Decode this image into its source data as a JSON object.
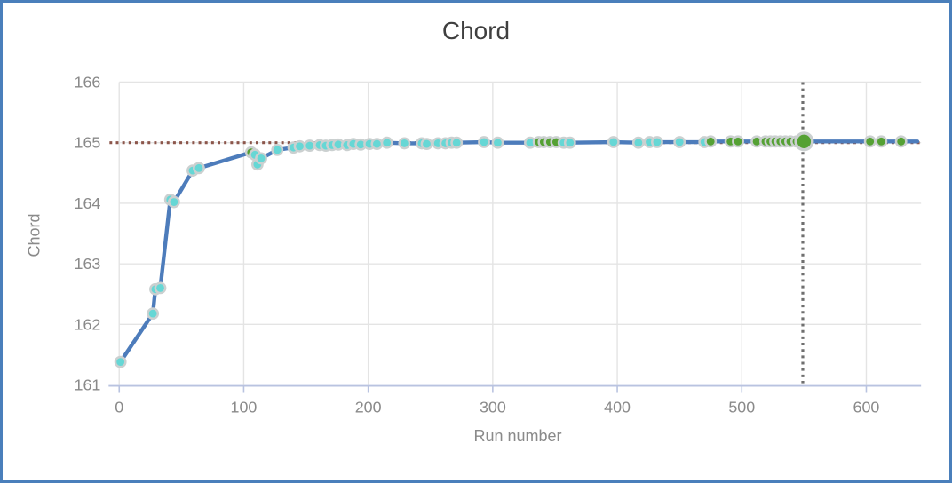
{
  "page": {
    "background": "#ffffff",
    "frame_color": "#4a7fbb"
  },
  "chart_data": {
    "type": "line",
    "title": "Chord",
    "xlabel": "Run number",
    "ylabel": "Chord",
    "x_ticks": [
      0,
      100,
      200,
      300,
      400,
      500,
      600
    ],
    "y_ticks": [
      161,
      162,
      163,
      164,
      165,
      166
    ],
    "xlim": [
      -8.5,
      644
    ],
    "ylim": [
      161,
      166
    ],
    "grid": true,
    "legend": "none",
    "style": {
      "line_color": "#4d7cbb",
      "marker_stroke": "#cbd0d0",
      "cyan_marker": "#66d7d5",
      "green_marker": "#55a134",
      "gridline_color": "#e4e4e4",
      "baseline_color": "#b9c3e0",
      "tick_label_color": "#8a8a8a",
      "title_color": "#3f3f3f",
      "target_line_color": "#8c564b",
      "current_run_line_color": "#6f6f6f"
    },
    "reference_lines": [
      {
        "name": "target-value",
        "orientation": "horizontal",
        "value": 165,
        "style": "dotted",
        "color": "#8c564b"
      },
      {
        "name": "current-run",
        "orientation": "vertical",
        "value": 549,
        "style": "dotted",
        "color": "#6f6f6f"
      }
    ],
    "highlight_point": {
      "x": 550,
      "y": 165.02,
      "color": "green",
      "size": "large"
    },
    "line_end": {
      "x": 641,
      "y": 165.02
    },
    "points": [
      [
        1,
        161.38,
        "c"
      ],
      [
        27,
        162.18,
        "c"
      ],
      [
        29,
        162.58,
        "c"
      ],
      [
        33,
        162.6,
        "c"
      ],
      [
        41,
        164.06,
        "c"
      ],
      [
        44,
        164.02,
        "c"
      ],
      [
        59,
        164.54,
        "c"
      ],
      [
        64,
        164.58,
        "c"
      ],
      [
        106,
        164.84,
        "g"
      ],
      [
        109,
        164.8,
        "c"
      ],
      [
        111,
        164.64,
        "c"
      ],
      [
        114,
        164.74,
        "c"
      ],
      [
        127,
        164.88,
        "c"
      ],
      [
        140,
        164.92,
        "c"
      ],
      [
        145,
        164.94,
        "c"
      ],
      [
        153,
        164.95,
        "c"
      ],
      [
        161,
        164.96,
        "c"
      ],
      [
        166,
        164.95,
        "c"
      ],
      [
        171,
        164.96,
        "c"
      ],
      [
        176,
        164.97,
        "c"
      ],
      [
        183,
        164.96,
        "c"
      ],
      [
        188,
        164.98,
        "c"
      ],
      [
        194,
        164.97,
        "c"
      ],
      [
        201,
        164.98,
        "c"
      ],
      [
        207,
        164.98,
        "c"
      ],
      [
        215,
        165.0,
        "c"
      ],
      [
        229,
        164.99,
        "c"
      ],
      [
        243,
        164.99,
        "c"
      ],
      [
        247,
        164.98,
        "c"
      ],
      [
        256,
        164.99,
        "c"
      ],
      [
        262,
        164.99,
        "c"
      ],
      [
        267,
        165.0,
        "c"
      ],
      [
        271,
        165.0,
        "c"
      ],
      [
        293,
        165.01,
        "c"
      ],
      [
        304,
        165.0,
        "c"
      ],
      [
        330,
        165.0,
        "c"
      ],
      [
        337,
        165.01,
        "g"
      ],
      [
        341,
        165.01,
        "g"
      ],
      [
        346,
        165.01,
        "g"
      ],
      [
        351,
        165.01,
        "g"
      ],
      [
        357,
        165.0,
        "c"
      ],
      [
        362,
        165.0,
        "c"
      ],
      [
        397,
        165.01,
        "c"
      ],
      [
        417,
        165.0,
        "c"
      ],
      [
        426,
        165.01,
        "c"
      ],
      [
        432,
        165.01,
        "c"
      ],
      [
        450,
        165.01,
        "c"
      ],
      [
        470,
        165.01,
        "c"
      ],
      [
        475,
        165.02,
        "g"
      ],
      [
        491,
        165.02,
        "g"
      ],
      [
        497,
        165.02,
        "g"
      ],
      [
        512,
        165.02,
        "g"
      ],
      [
        519,
        165.02,
        "g"
      ],
      [
        523,
        165.02,
        "g"
      ],
      [
        527,
        165.02,
        "g"
      ],
      [
        531,
        165.02,
        "g"
      ],
      [
        535,
        165.02,
        "g"
      ],
      [
        539,
        165.02,
        "g"
      ],
      [
        544,
        165.02,
        "g"
      ],
      [
        550,
        165.02,
        "g",
        "big"
      ],
      [
        603,
        165.02,
        "g"
      ],
      [
        612,
        165.02,
        "g"
      ],
      [
        628,
        165.02,
        "g"
      ]
    ]
  }
}
